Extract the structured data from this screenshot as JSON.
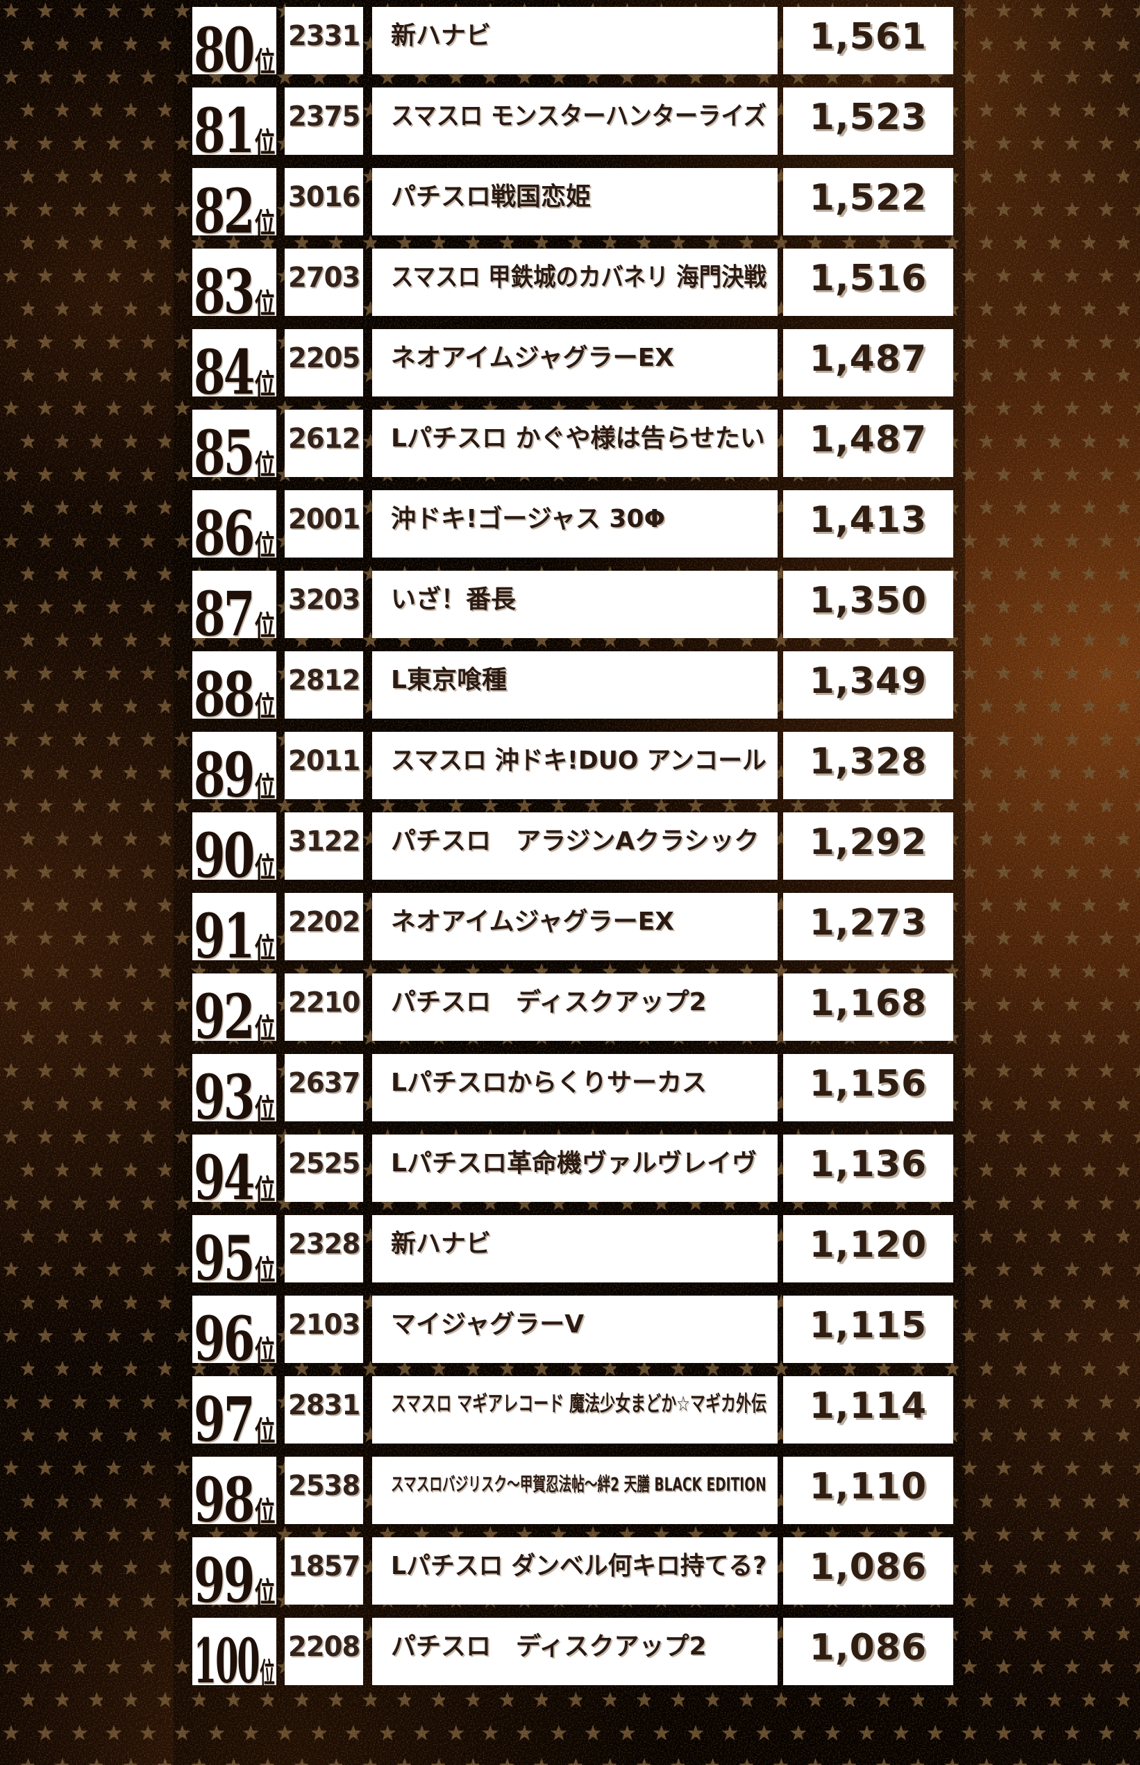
{
  "page": {
    "kind": "pachislot-hall-ranking-list",
    "visible_rank_range": "80-100"
  },
  "palette": {
    "box_background": "#ffffff",
    "text_dark_brown": "#2b1a12",
    "rank_text": "#1e1008",
    "text_shadow_gray": "#bcb0a1",
    "background_base": "#0d0502",
    "background_rust_glow": "#8a4513",
    "star_tan": "#8e6c42"
  },
  "ranking": {
    "rank_unit": "位",
    "columns": [
      "rank",
      "machine_no",
      "machine_name",
      "value"
    ],
    "rows": [
      {
        "rank": "80",
        "machine_no": "2331",
        "name": "新ハナビ",
        "value": "1,561"
      },
      {
        "rank": "81",
        "machine_no": "2375",
        "name": "スマスロ モンスターハンターライズ",
        "value": "1,523"
      },
      {
        "rank": "82",
        "machine_no": "3016",
        "name": "パチスロ戦国恋姫",
        "value": "1,522"
      },
      {
        "rank": "83",
        "machine_no": "2703",
        "name": "スマスロ 甲鉄城のカバネリ 海門決戦",
        "value": "1,516"
      },
      {
        "rank": "84",
        "machine_no": "2205",
        "name": "ネオアイムジャグラーEX",
        "value": "1,487"
      },
      {
        "rank": "85",
        "machine_no": "2612",
        "name": "Lパチスロ かぐや様は告らせたい",
        "value": "1,487"
      },
      {
        "rank": "86",
        "machine_no": "2001",
        "name": "沖ドキ!ゴージャス 30Φ",
        "value": "1,413"
      },
      {
        "rank": "87",
        "machine_no": "3203",
        "name": "いざ！番長",
        "value": "1,350"
      },
      {
        "rank": "88",
        "machine_no": "2812",
        "name": "L東京喰種",
        "value": "1,349"
      },
      {
        "rank": "89",
        "machine_no": "2011",
        "name": "スマスロ 沖ドキ!DUO アンコール",
        "value": "1,328"
      },
      {
        "rank": "90",
        "machine_no": "3122",
        "name": "パチスロ　アラジンAクラシック",
        "value": "1,292"
      },
      {
        "rank": "91",
        "machine_no": "2202",
        "name": "ネオアイムジャグラーEX",
        "value": "1,273"
      },
      {
        "rank": "92",
        "machine_no": "2210",
        "name": "パチスロ　ディスクアップ2",
        "value": "1,168"
      },
      {
        "rank": "93",
        "machine_no": "2637",
        "name": "Lパチスロからくりサーカス",
        "value": "1,156"
      },
      {
        "rank": "94",
        "machine_no": "2525",
        "name": "Lパチスロ革命機ヴァルヴレイヴ",
        "value": "1,136"
      },
      {
        "rank": "95",
        "machine_no": "2328",
        "name": "新ハナビ",
        "value": "1,120"
      },
      {
        "rank": "96",
        "machine_no": "2103",
        "name": "マイジャグラーV",
        "value": "1,115"
      },
      {
        "rank": "97",
        "machine_no": "2831",
        "name": "スマスロ マギアレコード 魔法少女まどか☆マギカ外伝",
        "value": "1,114"
      },
      {
        "rank": "98",
        "machine_no": "2538",
        "name": "スマスロバジリスク～甲賀忍法帖～絆2 天膳 BLACK EDITION",
        "value": "1,110"
      },
      {
        "rank": "99",
        "machine_no": "1857",
        "name": "Lパチスロ ダンベル何キロ持てる?",
        "value": "1,086"
      },
      {
        "rank": "100",
        "machine_no": "2208",
        "name": "パチスロ　ディスクアップ2",
        "value": "1,086"
      }
    ]
  }
}
